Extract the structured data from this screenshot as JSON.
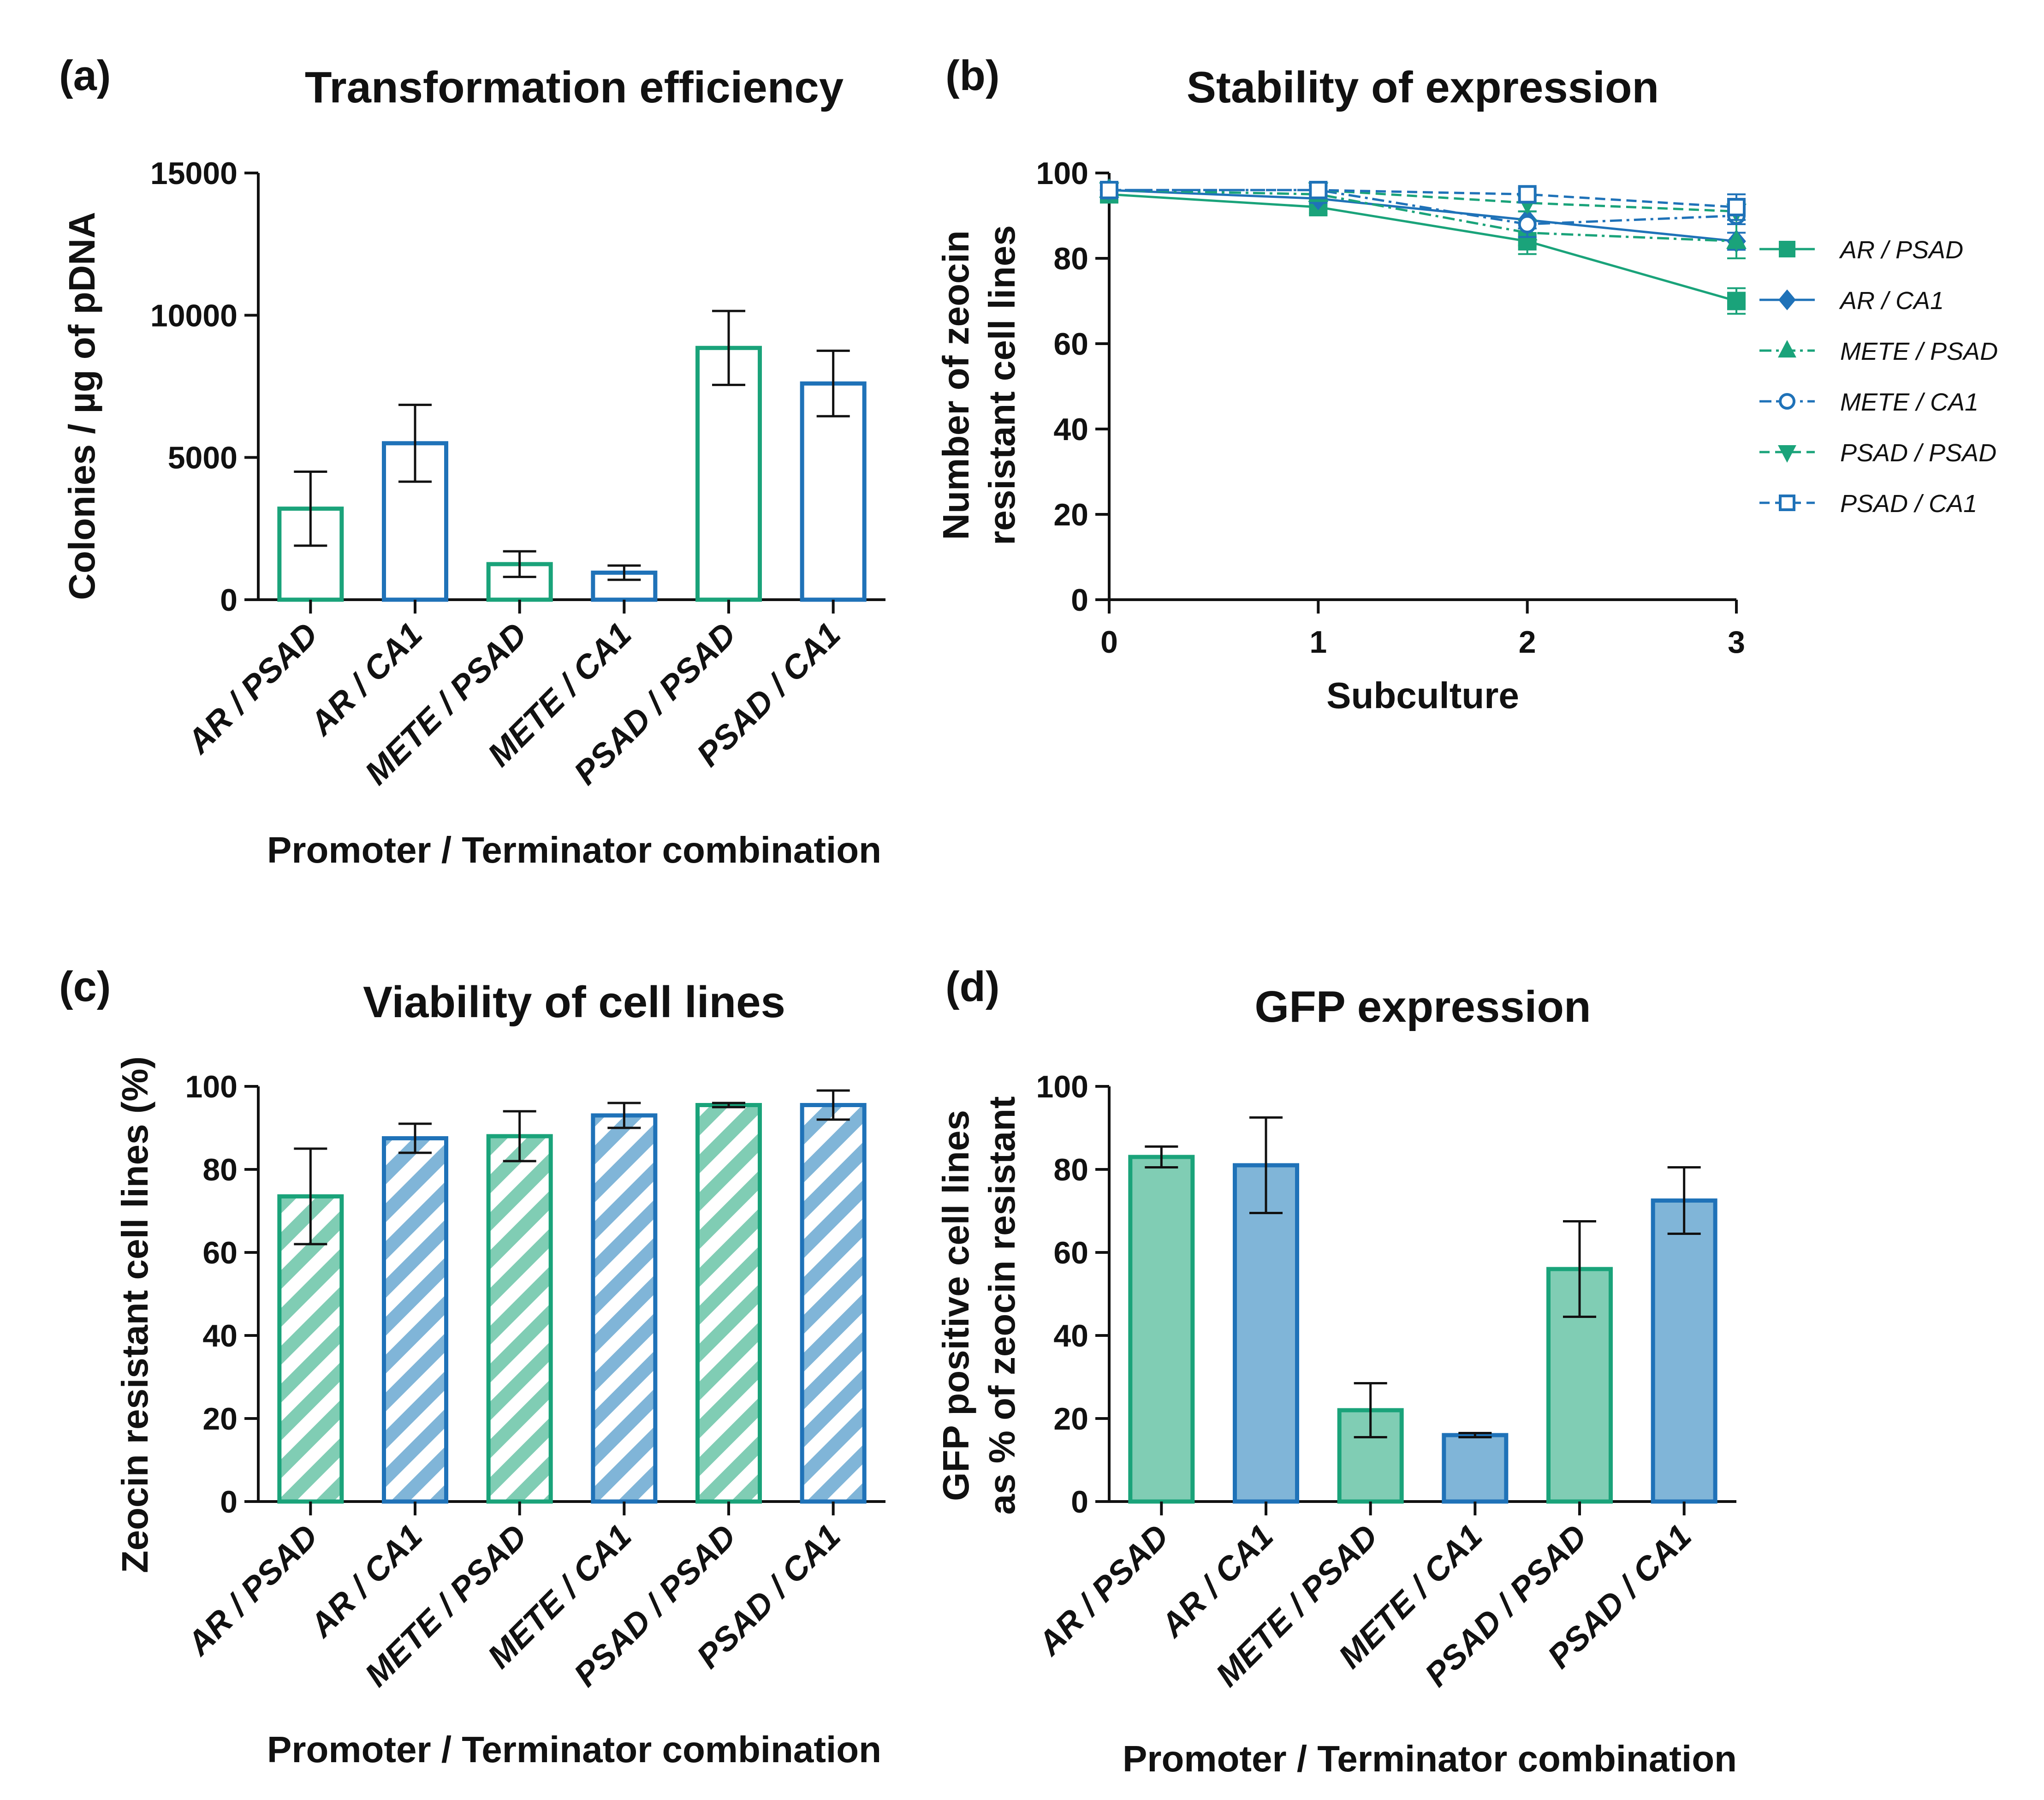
{
  "colors": {
    "green": "#1aa37a",
    "blue": "#1f72b8",
    "green_fill": "#80cdb4",
    "blue_fill": "#80b5d8",
    "axis": "#111111"
  },
  "chart_data": [
    {
      "panel": "(a)",
      "type": "bar",
      "title": "Transformation efficiency",
      "xlabel": "Promoter / Terminator combination",
      "ylabel": "Colonies / µg of pDNA",
      "ylim": [
        0,
        15000
      ],
      "yticks": [
        0,
        5000,
        10000,
        15000
      ],
      "categories": [
        "AR / PSAD",
        "AR / CA1",
        "METE / PSAD",
        "METE / CA1",
        "PSAD / PSAD",
        "PSAD / CA1"
      ],
      "values": [
        3200,
        5500,
        1250,
        950,
        8850,
        7600
      ],
      "errors": [
        1300,
        1350,
        450,
        250,
        1300,
        1150
      ],
      "bar_colors": [
        "green",
        "blue",
        "green",
        "blue",
        "green",
        "blue"
      ],
      "fill": "none"
    },
    {
      "panel": "(b)",
      "type": "line",
      "title": "Stability of expression",
      "xlabel": "Subculture",
      "ylabel": [
        "Number of zeocin",
        "resistant cell lines"
      ],
      "xlim": [
        0,
        3
      ],
      "xticks": [
        0,
        1,
        2,
        3
      ],
      "ylim": [
        0,
        100
      ],
      "yticks": [
        0,
        20,
        40,
        60,
        80,
        100
      ],
      "x": [
        0,
        1,
        2,
        3
      ],
      "series": [
        {
          "name": "AR / PSAD",
          "values": [
            95,
            92,
            84,
            70
          ],
          "errors": [
            1,
            1.5,
            3,
            3
          ],
          "color": "green",
          "marker": "square-filled",
          "dash": "solid"
        },
        {
          "name": "AR / CA1",
          "values": [
            96,
            94,
            89,
            84
          ],
          "errors": [
            1,
            1,
            2,
            2
          ],
          "color": "blue",
          "marker": "diamond-filled",
          "dash": "solid"
        },
        {
          "name": "METE / PSAD",
          "values": [
            96,
            95,
            86,
            84
          ],
          "errors": [
            1,
            1,
            3,
            4
          ],
          "color": "green",
          "marker": "triangle-up-filled",
          "dash": "dashdot"
        },
        {
          "name": "METE / CA1",
          "values": [
            96,
            96,
            88,
            90
          ],
          "errors": [
            1,
            1,
            3,
            2
          ],
          "color": "blue",
          "marker": "circle-open",
          "dash": "dashdot"
        },
        {
          "name": "PSAD / PSAD",
          "values": [
            96,
            96,
            93,
            91
          ],
          "errors": [
            1,
            1,
            2,
            2
          ],
          "color": "green",
          "marker": "triangle-down-filled",
          "dash": "dashed"
        },
        {
          "name": "PSAD / CA1",
          "values": [
            96,
            96,
            95,
            92
          ],
          "errors": [
            1,
            1,
            1.5,
            3
          ],
          "color": "blue",
          "marker": "square-open",
          "dash": "dashed"
        }
      ],
      "legend_position": "right"
    },
    {
      "panel": "(c)",
      "type": "bar",
      "title": "Viability of cell lines",
      "xlabel": "Promoter / Terminator combination",
      "ylabel": "Zeocin resistant cell lines (%)",
      "ylim": [
        0,
        100
      ],
      "yticks": [
        0,
        20,
        40,
        60,
        80,
        100
      ],
      "categories": [
        "AR / PSAD",
        "AR / CA1",
        "METE / PSAD",
        "METE / CA1",
        "PSAD / PSAD",
        "PSAD / CA1"
      ],
      "values": [
        73.5,
        87.5,
        88,
        93,
        95.5,
        95.5
      ],
      "errors": [
        11.5,
        3.5,
        6,
        3,
        0.5,
        3.5
      ],
      "bar_colors": [
        "green",
        "blue",
        "green",
        "blue",
        "green",
        "blue"
      ],
      "fill": "hatched"
    },
    {
      "panel": "(d)",
      "type": "bar",
      "title": "GFP expression",
      "xlabel": "Promoter / Terminator combination",
      "ylabel": [
        "GFP positive cell lines",
        "as % of zeocin resistant"
      ],
      "ylim": [
        0,
        100
      ],
      "yticks": [
        0,
        20,
        40,
        60,
        80,
        100
      ],
      "categories": [
        "AR / PSAD",
        "AR / CA1",
        "METE / PSAD",
        "METE / CA1",
        "PSAD / PSAD",
        "PSAD / CA1"
      ],
      "values": [
        83,
        81,
        22,
        16,
        56,
        72.5
      ],
      "errors": [
        2.5,
        11.5,
        6.5,
        0.5,
        11.5,
        8
      ],
      "bar_colors": [
        "green",
        "blue",
        "green",
        "blue",
        "green",
        "blue"
      ],
      "fill": "solid"
    }
  ]
}
